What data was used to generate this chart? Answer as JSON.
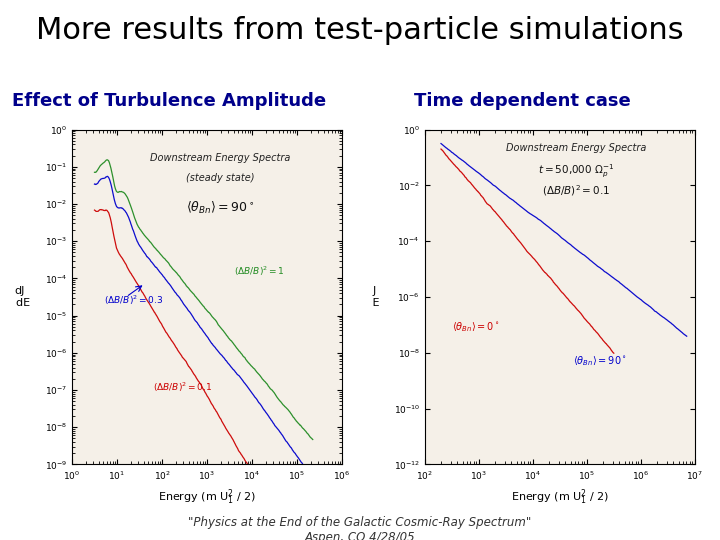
{
  "title": "More results from test-particle simulations",
  "title_fontsize": 22,
  "title_fontweight": "normal",
  "title_color": "#000000",
  "subtitle_left": "Effect of Turbulence Amplitude",
  "subtitle_right": "Time dependent case",
  "subtitle_fontsize": 13,
  "subtitle_color": "#00008B",
  "background_color": "#ffffff",
  "footer_line1": "\"Physics at the End of the Galactic Cosmic-Ray Spectrum\"",
  "footer_line2": "Aspen, CO 4/28/05",
  "footer_fontsize": 8.5,
  "left_plot": {
    "ann_title": "Downstream Energy Spectra",
    "ann_sub": "(steady state)",
    "ann_theta": "$\\langle\\theta_{Bn}\\rangle = 90^\\circ$",
    "xlabel": "Energy (m U$_1^2$ / 2)",
    "ylabel": "dJ\n  dE",
    "label_green": "$(\\Delta B/B)^2 = 1$",
    "label_blue": "$(\\Delta B/B)^2 = 0.3$",
    "label_red": "$(\\Delta B/B)^2 = 0.1$",
    "color_green": "#228B22",
    "color_blue": "#0000CC",
    "color_red": "#CC0000",
    "xlim": [
      1,
      1000000.0
    ],
    "ylim": [
      1e-09,
      1.0
    ],
    "plot_bg": "#f5f0e8"
  },
  "right_plot": {
    "ann_title": "Downstream Energy Spectra",
    "ann_sub1": "t = 50,000 $\\Omega_p^{-1}$",
    "ann_sub2": "$(\\Delta B/B)^2 = 0.1$",
    "xlabel": "Energy (m U$_1^2$ / 2)",
    "ylabel": "J\n E",
    "label_red": "$\\langle\\theta_{Bn}\\rangle = 0^\\circ$",
    "label_blue": "$\\langle\\theta_{Bn}\\rangle = 90^\\circ$",
    "color_red": "#CC0000",
    "color_blue": "#0000CC",
    "xlim": [
      100.0,
      10000000.0
    ],
    "ylim": [
      1e-12,
      1.0
    ],
    "plot_bg": "#f5f0e8"
  }
}
